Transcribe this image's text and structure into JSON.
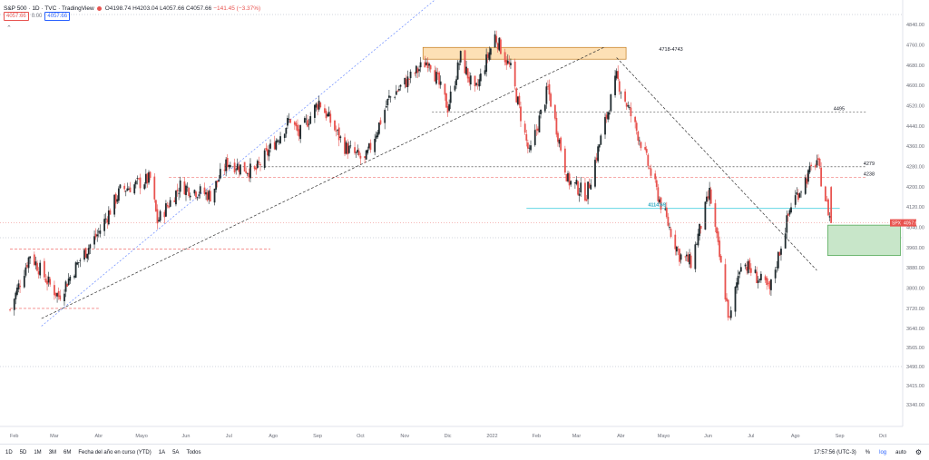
{
  "header": {
    "symbol": "S&P 500 · 1D · TVC · TradingView",
    "ohlc": "O4198.74 H4203.04 L4057.66 C4057.66",
    "change": "−141.45 (−3.37%)",
    "sell_price": "4057.66",
    "spread": "0.00",
    "buy_price": "4057.66",
    "collapse_icon": "chevron-up-icon"
  },
  "colors": {
    "up": "#26a69a",
    "down": "#ef5350",
    "candle_up": "#1f2a2e",
    "candle_down": "#e8534f",
    "resistance_zone": "#fde0b5",
    "target_zone": "#c8e6c9",
    "support_line": "#4dd0e1",
    "trendline_blue": "#6b8cff",
    "axis_text": "#6a6d78",
    "last_price_bg": "#e8534f"
  },
  "bottom_bar": {
    "ranges": [
      "1D",
      "5D",
      "1M",
      "3M",
      "6M",
      "Fecha del año en curso (YTD)",
      "1A",
      "5A",
      "Todos"
    ],
    "time": "17:57:56 (UTC-3)",
    "percent": "%",
    "log": "log",
    "auto": "auto",
    "settings_icon": "gear-icon"
  },
  "chart_data": {
    "type": "candlestick",
    "x_tick_labels": [
      "Feb",
      "Mar",
      "Abr",
      "Mayo",
      "Jun",
      "Jul",
      "Ago",
      "Sep",
      "Oct",
      "Nov",
      "Dic",
      "2022",
      "Feb",
      "Mar",
      "Abr",
      "Mayo",
      "Jun",
      "Jul",
      "Ago",
      "Sep",
      "Oct"
    ],
    "y_tick_labels": [
      4840,
      4760,
      4680,
      4600,
      4520,
      4440,
      4360,
      4280,
      4200,
      4120,
      4040,
      3960,
      3880,
      3800,
      3720,
      3640,
      3565,
      3490,
      3415,
      3340
    ],
    "y_tick_display": [
      "4840.00",
      "4760.00",
      "4680.00",
      "4600.00",
      "4520.00",
      "4440.00",
      "4360.00",
      "4280.00",
      "4200.00",
      "4120.00",
      "4040.00",
      "3960.00",
      "3880.00",
      "3800.00",
      "3720.00",
      "3640.00",
      "3565.00",
      "3490.00",
      "3415.00",
      "3340.00"
    ],
    "ylim": [
      3340,
      4880
    ],
    "last_price": {
      "label": "SPX",
      "value": "4057.66"
    },
    "level_labels": [
      {
        "text": "4718-4743",
        "value": 4730
      },
      {
        "text": "4495",
        "value": 4495
      },
      {
        "text": "4279",
        "value": 4279
      },
      {
        "text": "4238",
        "value": 4238
      },
      {
        "text": "4114.65",
        "value": 4114.65
      }
    ],
    "price_path": [
      [
        "2021-01-29",
        3714
      ],
      [
        "2021-02-12",
        3934
      ],
      [
        "2021-02-26",
        3811
      ],
      [
        "2021-03-04",
        3768
      ],
      [
        "2021-03-19",
        3913
      ],
      [
        "2021-04-01",
        4020
      ],
      [
        "2021-04-16",
        4185
      ],
      [
        "2021-05-07",
        4232
      ],
      [
        "2021-05-12",
        4063
      ],
      [
        "2021-05-28",
        4204
      ],
      [
        "2021-06-18",
        4166
      ],
      [
        "2021-06-30",
        4297
      ],
      [
        "2021-07-19",
        4258
      ],
      [
        "2021-08-13",
        4468
      ],
      [
        "2021-08-19",
        4405
      ],
      [
        "2021-09-02",
        4537
      ],
      [
        "2021-09-20",
        4358
      ],
      [
        "2021-10-04",
        4300
      ],
      [
        "2021-10-21",
        4549
      ],
      [
        "2021-11-18",
        4704
      ],
      [
        "2021-12-01",
        4513
      ],
      [
        "2021-12-10",
        4712
      ],
      [
        "2021-12-20",
        4568
      ],
      [
        "2022-01-03",
        4796
      ],
      [
        "2022-01-14",
        4662
      ],
      [
        "2022-01-27",
        4326
      ],
      [
        "2022-02-09",
        4587
      ],
      [
        "2022-02-23",
        4225
      ],
      [
        "2022-03-08",
        4170
      ],
      [
        "2022-03-29",
        4631
      ],
      [
        "2022-04-14",
        4392
      ],
      [
        "2022-04-29",
        4131
      ],
      [
        "2022-05-12",
        3930
      ],
      [
        "2022-05-20",
        3901
      ],
      [
        "2022-06-02",
        4176
      ],
      [
        "2022-06-16",
        3666
      ],
      [
        "2022-06-24",
        3911
      ],
      [
        "2022-07-14",
        3790
      ],
      [
        "2022-07-29",
        4130
      ],
      [
        "2022-08-16",
        4305
      ],
      [
        "2022-08-23",
        4128
      ],
      [
        "2022-08-26",
        4057
      ]
    ],
    "annotations": {
      "resistance_zone": {
        "low": 4718,
        "high": 4743,
        "x_start": "2021-11-01",
        "x_end": "2022-04-30"
      },
      "target_zone": {
        "low": 3950,
        "high": 4020,
        "x_start": "2022-08-30",
        "x_end": "2022-09-30"
      },
      "support_line": {
        "value": 4114.65,
        "x_start": "2022-01-25",
        "x_end": "2022-09-01"
      },
      "levels": [
        {
          "value": 4495,
          "style": "dashed",
          "x_start": "2021-11-20"
        },
        {
          "value": 4279,
          "style": "dashed",
          "x_start": "2021-06-28"
        },
        {
          "value": 4238,
          "style": "dashed-red",
          "x_start": "2021-05-20"
        },
        {
          "value": 3955,
          "style": "dashed-red",
          "x_start": "2021-01-29",
          "x_end": "2021-07-30"
        },
        {
          "value": 3720,
          "style": "dashed-red",
          "x_start": "2021-01-29",
          "x_end": "2021-04-01"
        }
      ],
      "trendline_blue": [
        [
          "2021-02-20",
          3650
        ],
        [
          "2021-12-01",
          4980
        ]
      ],
      "trendline_black": [
        [
          "2021-02-20",
          3680
        ],
        [
          "2022-03-20",
          4750
        ]
      ],
      "trendline_down": [
        [
          "2022-03-29",
          4710
        ],
        [
          "2022-08-16",
          3870
        ]
      ]
    }
  }
}
